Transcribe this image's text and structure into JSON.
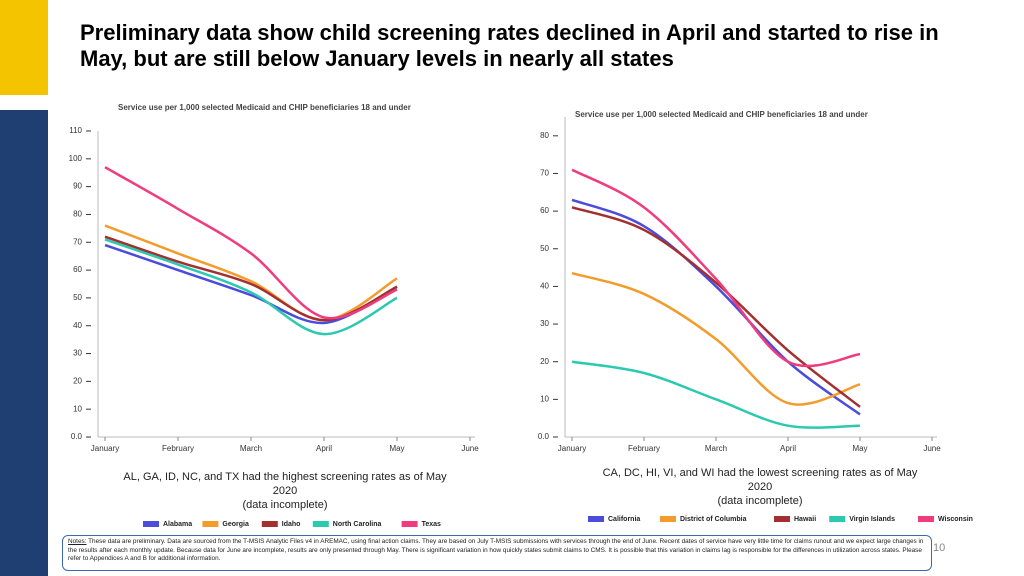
{
  "title": "Preliminary data show child screening rates declined in April and started to rise in May, but are still below January levels in nearly all states",
  "chart_data": [
    {
      "type": "line",
      "subtitle": "Service use per 1,000 selected Medicaid and CHIP beneficiaries 18 and under",
      "categories": [
        "January",
        "February",
        "March",
        "April",
        "May",
        "June"
      ],
      "ylim": [
        0,
        110
      ],
      "yticks": [
        {
          "value": 0,
          "label": "0.0"
        },
        10,
        20,
        30,
        40,
        50,
        60,
        70,
        80,
        90,
        100,
        110
      ],
      "series": [
        {
          "name": "Alabama",
          "color": "#4b4bdc",
          "values": [
            69,
            60,
            51,
            41,
            54,
            null
          ]
        },
        {
          "name": "Georgia",
          "color": "#f39c2c",
          "values": [
            76,
            66,
            56,
            42,
            57,
            null
          ]
        },
        {
          "name": "Idaho",
          "color": "#a33030",
          "values": [
            72,
            63,
            55,
            42,
            54,
            null
          ]
        },
        {
          "name": "North Carolina",
          "color": "#2ac9b0",
          "values": [
            71,
            62,
            52,
            37,
            50,
            null
          ]
        },
        {
          "name": "Texas",
          "color": "#f03c7c",
          "values": [
            97,
            82,
            66,
            43,
            53,
            null
          ]
        }
      ],
      "caption": "AL, GA, ID, NC, and TX had the highest screening rates as of May 2020",
      "caption_note": "(data incomplete)"
    },
    {
      "type": "line",
      "subtitle": "Service use per 1,000 selected Medicaid and CHIP beneficiaries 18 and under",
      "categories": [
        "January",
        "February",
        "March",
        "April",
        "May",
        "June"
      ],
      "ylim": [
        0,
        85
      ],
      "yticks": [
        {
          "value": 0,
          "label": "0.0"
        },
        10,
        20,
        30,
        40,
        50,
        60,
        70,
        80
      ],
      "series": [
        {
          "name": "California",
          "color": "#4b4bdc",
          "values": [
            63,
            56,
            40,
            20,
            6,
            null
          ]
        },
        {
          "name": "District of Columbia",
          "color": "#f39c2c",
          "values": [
            43.5,
            38,
            26,
            9,
            14,
            null
          ]
        },
        {
          "name": "Hawaii",
          "color": "#a33030",
          "values": [
            61,
            55,
            41,
            23,
            8,
            null
          ]
        },
        {
          "name": "Virgin Islands",
          "color": "#2ac9b0",
          "values": [
            20,
            17,
            10,
            3,
            3,
            null
          ]
        },
        {
          "name": "Wisconsin",
          "color": "#f03c7c",
          "values": [
            71,
            61,
            42,
            20,
            22,
            null
          ]
        }
      ],
      "caption": "CA, DC, HI, VI, and WI had the lowest screening rates as of May 2020",
      "caption_note": "(data incomplete)"
    }
  ],
  "notes_label": "Notes:",
  "notes_text": "These data are preliminary. Data are sourced from the T-MSIS Analytic Files v4 in AREMAC, using final action claims. They are based on July T-MSIS submissions with services through the end of June. Recent dates of service have very little time for claims runout and we expect large changes in the results after each monthly update. Because data for June are incomplete, results are only presented through May. There is significant variation in how quickly states submit claims to CMS. It is possible that this variation in claims lag is responsible for the differences in utilization across states. Please refer to Appendices A and B for additional information.",
  "page_number": "10"
}
